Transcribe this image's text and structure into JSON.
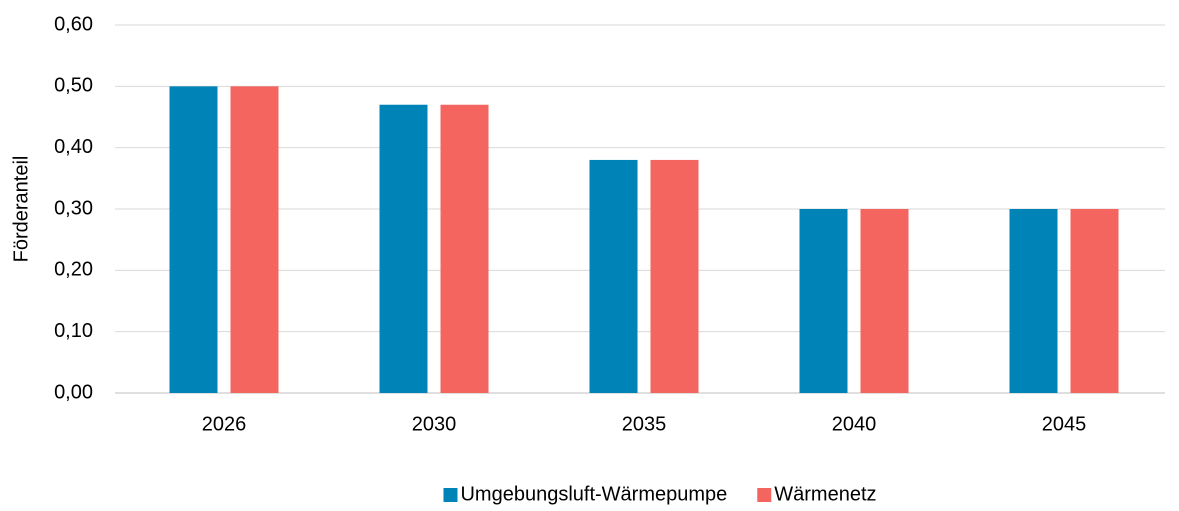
{
  "chart_data": {
    "type": "bar",
    "y_label": "Förderanteil",
    "categories": [
      "2026",
      "2030",
      "2035",
      "2040",
      "2045"
    ],
    "series": [
      {
        "name": "Umgebungsluft-Wärmepumpe",
        "color": "#0083b6",
        "values": [
          0.5,
          0.47,
          0.38,
          0.3,
          0.3
        ]
      },
      {
        "name": "Wärmenetz",
        "color": "#f4655f",
        "values": [
          0.5,
          0.47,
          0.38,
          0.3,
          0.3
        ]
      }
    ],
    "ylim": [
      0,
      0.6
    ],
    "yticks": [
      {
        "value": 0,
        "label": "0,00"
      },
      {
        "value": 0.1,
        "label": "0,10"
      },
      {
        "value": 0.2,
        "label": "0,20"
      },
      {
        "value": 0.3,
        "label": "0,30"
      },
      {
        "value": 0.4,
        "label": "0,40"
      },
      {
        "value": 0.5,
        "label": "0,50"
      },
      {
        "value": 0.6,
        "label": "0,60"
      }
    ],
    "grid": true,
    "legend": "bottom"
  }
}
